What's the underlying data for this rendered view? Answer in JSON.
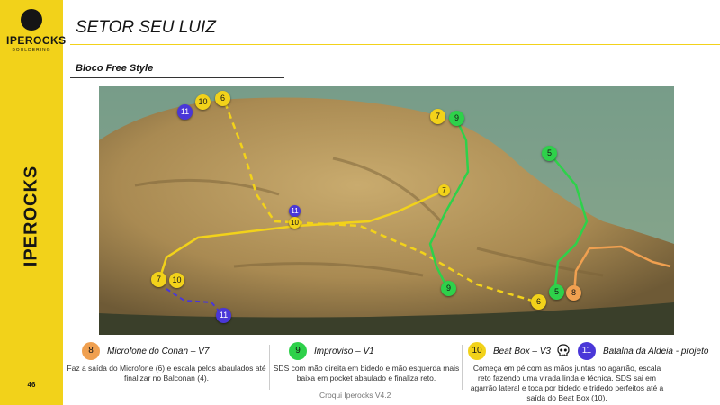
{
  "sidebar": {
    "logo_text": "IPEROCKS",
    "logo_sub": "BOULDERING",
    "brand_vertical": "IPEROCKS",
    "page_number": "46",
    "color": "#f2d21a"
  },
  "header": {
    "title": "SETOR SEU LUIZ",
    "subtitle": "Bloco Free Style"
  },
  "photo": {
    "markers": {
      "m11_top": "11",
      "m10_top": "10",
      "m6_top": "6",
      "m7_top": "7",
      "m9_top": "9",
      "m7_mid": "7",
      "m11_mid": "11",
      "m10_mid": "10",
      "m5_top": "5",
      "m7_left": "7",
      "m10_left": "10",
      "m11_bottom": "11",
      "m9_bottom": "9",
      "m6_bottom": "6",
      "m5_bottom": "5",
      "m8_bottom": "8"
    },
    "route_colors": {
      "yellow": "#f2d21a",
      "green": "#2ed14a",
      "blue": "#4a37d8",
      "orange": "#f0a050"
    }
  },
  "legend": {
    "microfone": {
      "number": "8",
      "name": "Microfone do Conan – V7",
      "description": "Faz a saída do Microfone (6) e escala pelos abaulados até finalizar no Balconan (4)."
    },
    "improviso": {
      "number": "9",
      "name": "Improviso – V1",
      "description": "SDS com mão direita em bidedo e mão esquerda mais baixa em pocket abaulado e finaliza reto."
    },
    "beatbox": {
      "number": "10",
      "name": "Beat Box – V3",
      "icon": "skull-icon",
      "description": "Começa em pé com as mãos juntas no agarrão, escala reto fazendo uma virada linda e técnica. SDS sai em agarrão lateral e toca por bidedo e tridedo perfeitos até a saída do Beat Box (10)."
    },
    "batalha": {
      "number": "11",
      "name": "Batalha da Aldeia - projeto"
    }
  },
  "footer": {
    "text": "Croqui Iperocks V4.2"
  }
}
